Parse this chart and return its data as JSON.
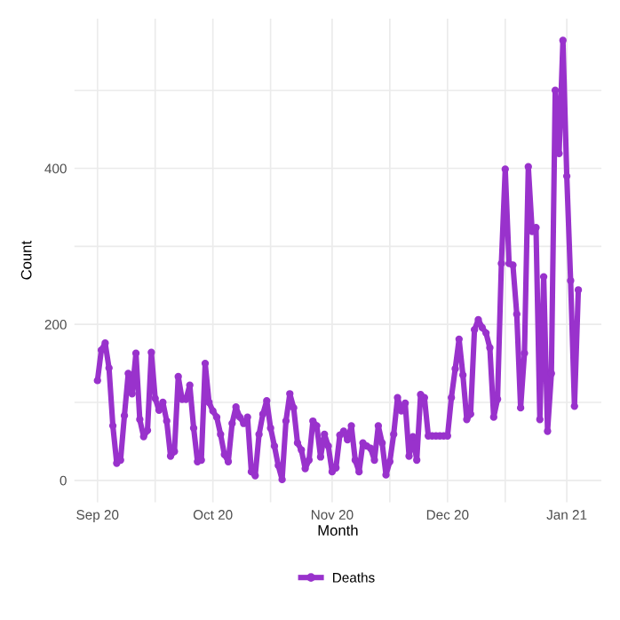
{
  "chart_data": {
    "type": "line",
    "xlabel": "Month",
    "ylabel": "Count",
    "x": [
      "2020-09-01",
      "2020-09-02",
      "2020-09-03",
      "2020-09-04",
      "2020-09-05",
      "2020-09-06",
      "2020-09-07",
      "2020-09-08",
      "2020-09-09",
      "2020-09-10",
      "2020-09-11",
      "2020-09-12",
      "2020-09-13",
      "2020-09-14",
      "2020-09-15",
      "2020-09-16",
      "2020-09-17",
      "2020-09-18",
      "2020-09-19",
      "2020-09-20",
      "2020-09-21",
      "2020-09-22",
      "2020-09-23",
      "2020-09-24",
      "2020-09-25",
      "2020-09-26",
      "2020-09-27",
      "2020-09-28",
      "2020-09-29",
      "2020-09-30",
      "2020-10-01",
      "2020-10-02",
      "2020-10-03",
      "2020-10-04",
      "2020-10-05",
      "2020-10-06",
      "2020-10-07",
      "2020-10-08",
      "2020-10-09",
      "2020-10-10",
      "2020-10-11",
      "2020-10-12",
      "2020-10-13",
      "2020-10-14",
      "2020-10-15",
      "2020-10-16",
      "2020-10-17",
      "2020-10-18",
      "2020-10-19",
      "2020-10-20",
      "2020-10-21",
      "2020-10-22",
      "2020-10-23",
      "2020-10-24",
      "2020-10-25",
      "2020-10-26",
      "2020-10-27",
      "2020-10-28",
      "2020-10-29",
      "2020-10-30",
      "2020-10-31",
      "2020-11-01",
      "2020-11-02",
      "2020-11-03",
      "2020-11-04",
      "2020-11-05",
      "2020-11-06",
      "2020-11-07",
      "2020-11-08",
      "2020-11-09",
      "2020-11-10",
      "2020-11-11",
      "2020-11-12",
      "2020-11-13",
      "2020-11-14",
      "2020-11-15",
      "2020-11-16",
      "2020-11-17",
      "2020-11-18",
      "2020-11-19",
      "2020-11-20",
      "2020-11-21",
      "2020-11-22",
      "2020-11-23",
      "2020-11-24",
      "2020-11-25",
      "2020-11-26",
      "2020-11-27",
      "2020-11-28",
      "2020-11-29",
      "2020-11-30",
      "2020-12-01",
      "2020-12-02",
      "2020-12-03",
      "2020-12-04",
      "2020-12-05",
      "2020-12-06",
      "2020-12-07",
      "2020-12-08",
      "2020-12-09",
      "2020-12-10",
      "2020-12-11",
      "2020-12-12",
      "2020-12-13",
      "2020-12-14",
      "2020-12-15",
      "2020-12-16",
      "2020-12-17",
      "2020-12-18",
      "2020-12-19",
      "2020-12-20",
      "2020-12-21",
      "2020-12-22",
      "2020-12-23",
      "2020-12-24",
      "2020-12-25",
      "2020-12-26",
      "2020-12-27",
      "2020-12-28",
      "2020-12-29",
      "2020-12-30",
      "2020-12-31",
      "2021-01-01",
      "2021-01-02",
      "2021-01-03",
      "2021-01-04"
    ],
    "series": [
      {
        "name": "Deaths",
        "color": "#9932cc",
        "values": [
          128,
          167,
          176,
          144,
          70,
          22,
          26,
          83,
          137,
          111,
          163,
          78,
          56,
          64,
          164,
          105,
          90,
          100,
          76,
          31,
          37,
          133,
          104,
          104,
          122,
          67,
          24,
          26,
          150,
          100,
          89,
          81,
          59,
          33,
          24,
          73,
          94,
          81,
          73,
          81,
          11,
          6,
          59,
          85,
          102,
          67,
          44,
          19,
          1,
          76,
          111,
          93,
          48,
          39,
          15,
          26,
          76,
          70,
          30,
          59,
          44,
          11,
          16,
          58,
          63,
          52,
          70,
          26,
          11,
          48,
          44,
          41,
          26,
          70,
          48,
          7,
          24,
          59,
          106,
          89,
          99,
          31,
          56,
          26,
          110,
          106,
          57,
          57,
          57,
          57,
          57,
          57,
          106,
          143,
          181,
          135,
          78,
          85,
          193,
          206,
          196,
          189,
          170,
          81,
          104,
          278,
          399,
          278,
          276,
          213,
          93,
          163,
          402,
          319,
          324,
          78,
          261,
          63,
          137,
          500,
          419,
          564,
          390,
          256,
          95,
          244
        ]
      }
    ],
    "xlim": [
      "2020-08-26",
      "2021-01-10"
    ],
    "xticks": [
      {
        "value": "2020-09-01",
        "label": "Sep 20"
      },
      {
        "value": "2020-09-16",
        "label": null
      },
      {
        "value": "2020-10-01",
        "label": "Oct 20"
      },
      {
        "value": "2020-10-16",
        "label": null
      },
      {
        "value": "2020-11-01",
        "label": "Nov 20"
      },
      {
        "value": "2020-11-16",
        "label": null
      },
      {
        "value": "2020-12-01",
        "label": "Dec 20"
      },
      {
        "value": "2020-12-16",
        "label": null
      },
      {
        "value": "2021-01-01",
        "label": "Jan 21"
      }
    ],
    "ylim": [
      -28,
      592
    ],
    "yticks": [
      0,
      {
        "value": 100,
        "label": null
      },
      200,
      {
        "value": 300,
        "label": null
      },
      400,
      {
        "value": 500,
        "label": null
      }
    ],
    "grid": true,
    "legend": "bottom",
    "marker": "circle",
    "line_style": "solid"
  }
}
